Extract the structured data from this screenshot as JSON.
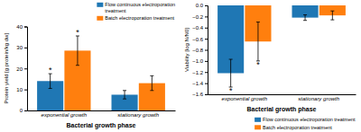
{
  "chart_data": [
    {
      "type": "bar",
      "xlabel": "Bacterial growth phase",
      "ylabel": "Protein yield [g protein/kg dw]",
      "categories": [
        "exponential growth",
        "stationary growth"
      ],
      "series": [
        {
          "name": "Flow continuous electroporation\ntreatment",
          "values": [
            14.0,
            7.5
          ],
          "errors": [
            3.5,
            2.0
          ],
          "annotations": [
            "*",
            null
          ]
        },
        {
          "name": "Batch electroporation treatment",
          "values": [
            28.5,
            13.0
          ],
          "errors": [
            7.0,
            3.5
          ],
          "annotations": [
            "*",
            null
          ]
        }
      ],
      "ylim": [
        0,
        40
      ],
      "yticks": [
        0,
        10,
        20,
        30,
        40
      ],
      "legend": "upper right"
    },
    {
      "type": "bar",
      "xlabel": "Bacterial growth phase",
      "ylabel": "Viability [log N/N0]",
      "categories": [
        "exponential growth",
        "stationary growth"
      ],
      "series": [
        {
          "name": "Flow continuous electroporation treatment",
          "values": [
            -1.22,
            -0.22
          ],
          "errors": [
            0.25,
            0.05
          ],
          "annotations": [
            "*",
            null
          ]
        },
        {
          "name": "Batch electroporation treatment",
          "values": [
            -0.65,
            -0.18
          ],
          "errors": [
            0.35,
            0.08
          ],
          "annotations": [
            "*",
            null
          ]
        }
      ],
      "ylim": [
        -1.6,
        0.0
      ],
      "yticks": [
        {
          "value": 0.0,
          "label": "0.0"
        },
        {
          "value": -0.2,
          "label": "−0.2"
        },
        {
          "value": -0.4,
          "label": "−0.4"
        },
        {
          "value": -0.6,
          "label": "−0.6"
        },
        {
          "value": -0.8,
          "label": "−0.8"
        },
        {
          "value": -1.0,
          "label": "−1.0"
        },
        {
          "value": -1.2,
          "label": "−1.2"
        },
        {
          "value": -1.4,
          "label": "−1.4"
        },
        {
          "value": -1.6,
          "label": "−1.6"
        }
      ],
      "legend": "lower right"
    }
  ]
}
